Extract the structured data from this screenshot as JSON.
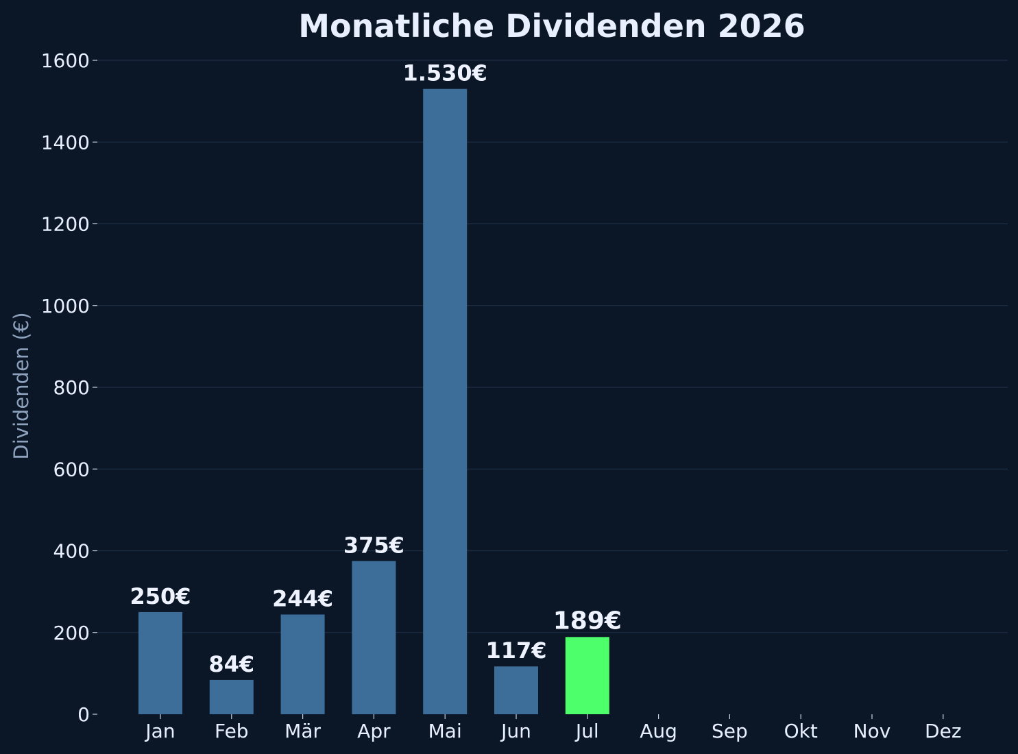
{
  "chart_data": {
    "type": "bar",
    "title": "Monatliche Dividenden 2026",
    "ylabel": "Dividenden (€)",
    "xlabel": "",
    "categories": [
      "Jan",
      "Feb",
      "Mär",
      "Apr",
      "Mai",
      "Jun",
      "Jul",
      "Aug",
      "Sep",
      "Okt",
      "Nov",
      "Dez"
    ],
    "values": [
      250,
      84,
      244,
      375,
      1530,
      117,
      189,
      null,
      null,
      null,
      null,
      null
    ],
    "value_labels": [
      "250€",
      "84€",
      "244€",
      "375€",
      "1.530€",
      "117€",
      "189€",
      "",
      "",
      "",
      "",
      ""
    ],
    "highlight_index": 6,
    "ylim": [
      0,
      1600
    ],
    "yticks": [
      0,
      200,
      400,
      600,
      800,
      1000,
      1200,
      1400,
      1600
    ],
    "grid": "horizontal",
    "colors": {
      "background": "#0b1727",
      "bar": "#3d6e99",
      "highlight": "#4dff6a"
    }
  }
}
